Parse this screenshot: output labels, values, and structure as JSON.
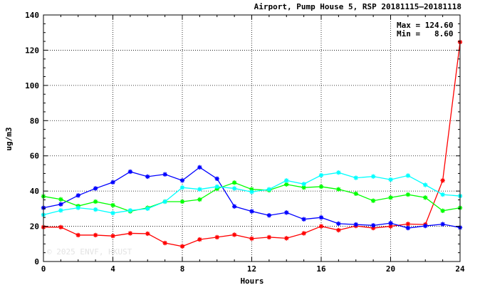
{
  "chart_data": {
    "type": "line",
    "title": "Airport, Pump House 5, RSP 20181115–20181118",
    "xlabel": "Hours",
    "ylabel": "ug/m3",
    "xlim": [
      0,
      24
    ],
    "ylim": [
      0,
      140
    ],
    "xticks": [
      0,
      4,
      8,
      12,
      16,
      20,
      24
    ],
    "yticks": [
      0,
      20,
      40,
      60,
      80,
      100,
      120,
      140
    ],
    "grid": true,
    "annotations": {
      "max_line": "Max = 124.60",
      "min_line": "Min =   8.60"
    },
    "watermark": "© 2025 ENVF, HKUST",
    "x": [
      0,
      1,
      2,
      3,
      4,
      5,
      6,
      7,
      8,
      9,
      10,
      11,
      12,
      13,
      14,
      15,
      16,
      17,
      18,
      19,
      20,
      21,
      22,
      23,
      24
    ],
    "series": [
      {
        "color": "#ff0000",
        "values": [
          19.5,
          19.5,
          15,
          15,
          14.5,
          16,
          15.8,
          10.5,
          8.6,
          12.5,
          13.8,
          15.2,
          13,
          13.8,
          13.2,
          16,
          20,
          17.8,
          20.2,
          19,
          20,
          21.3,
          21,
          46,
          124.6
        ]
      },
      {
        "color": "#0000ff",
        "values": [
          30.5,
          32.5,
          37.5,
          41.5,
          45,
          51,
          48.2,
          49.5,
          46,
          53.5,
          47,
          31.3,
          28.5,
          26.2,
          27.8,
          24,
          25,
          21.5,
          21,
          20.5,
          21.8,
          19,
          20.2,
          21.2,
          19.3
        ]
      },
      {
        "color": "#00ff00",
        "values": [
          37,
          35.3,
          31.5,
          34,
          32,
          28.5,
          30.5,
          34,
          34,
          35.2,
          41.3,
          44.8,
          41,
          40.5,
          43.8,
          42,
          42.5,
          41,
          38.5,
          34.5,
          36.3,
          38,
          36.3,
          28.8,
          30.5
        ]
      },
      {
        "color": "#00ffff",
        "values": [
          26.5,
          29,
          30.5,
          29.5,
          27.5,
          29,
          30,
          34,
          42,
          41,
          42.5,
          41.5,
          39.5,
          41,
          46,
          44,
          49,
          50.5,
          47.5,
          48.3,
          46.5,
          48.8,
          43.5,
          38,
          37.2
        ]
      }
    ]
  }
}
